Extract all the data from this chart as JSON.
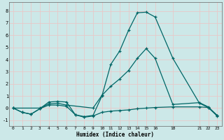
{
  "xlabel": "Humidex (Indice chaleur)",
  "background_color": "#cce8e8",
  "grid_color": "#e8c8c8",
  "line_color": "#006666",
  "ylim": [
    -1.5,
    8.7
  ],
  "xlim": [
    -0.5,
    23.5
  ],
  "yticks": [
    -1,
    0,
    1,
    2,
    3,
    4,
    5,
    6,
    7,
    8
  ],
  "xticks": [
    0,
    1,
    2,
    3,
    4,
    5,
    6,
    7,
    8,
    9,
    10,
    11,
    12,
    13,
    14,
    15,
    16,
    18,
    21,
    22,
    23
  ],
  "xtick_labels": [
    "0",
    "1",
    "2",
    "3",
    "4",
    "5",
    "6",
    "7",
    "8",
    "9",
    "10",
    "11",
    "12",
    "13",
    "14",
    "15",
    "16",
    "18",
    "21",
    "22",
    "23"
  ],
  "line1_x": [
    0,
    1,
    2,
    3,
    4,
    5,
    6,
    7,
    8,
    9,
    10,
    11,
    12,
    13,
    14,
    15,
    16,
    18,
    21,
    22,
    23
  ],
  "line1_y": [
    0.0,
    -0.35,
    -0.5,
    -0.05,
    0.5,
    0.55,
    0.5,
    -0.55,
    -0.7,
    -0.6,
    1.0,
    3.6,
    4.7,
    6.4,
    7.85,
    7.9,
    7.5,
    4.1,
    0.4,
    0.05,
    -0.6
  ],
  "line2_x": [
    0,
    1,
    2,
    3,
    4,
    5,
    6,
    7,
    8,
    9,
    10,
    11,
    12,
    13,
    14,
    15,
    16,
    18,
    21,
    22,
    23
  ],
  "line2_y": [
    0.0,
    -0.35,
    -0.5,
    -0.05,
    0.25,
    0.25,
    0.15,
    -0.55,
    -0.75,
    -0.65,
    -0.35,
    -0.25,
    -0.2,
    -0.15,
    -0.05,
    0.0,
    0.05,
    0.1,
    0.1,
    0.05,
    -0.65
  ],
  "line3_x": [
    0,
    3,
    4,
    5,
    6,
    9,
    10,
    11,
    12,
    13,
    14,
    15,
    16,
    18,
    21,
    22,
    23
  ],
  "line3_y": [
    0.0,
    0.0,
    0.35,
    0.4,
    0.25,
    0.0,
    1.05,
    1.8,
    2.4,
    3.1,
    4.1,
    4.9,
    4.1,
    0.3,
    0.45,
    0.1,
    -0.6
  ]
}
